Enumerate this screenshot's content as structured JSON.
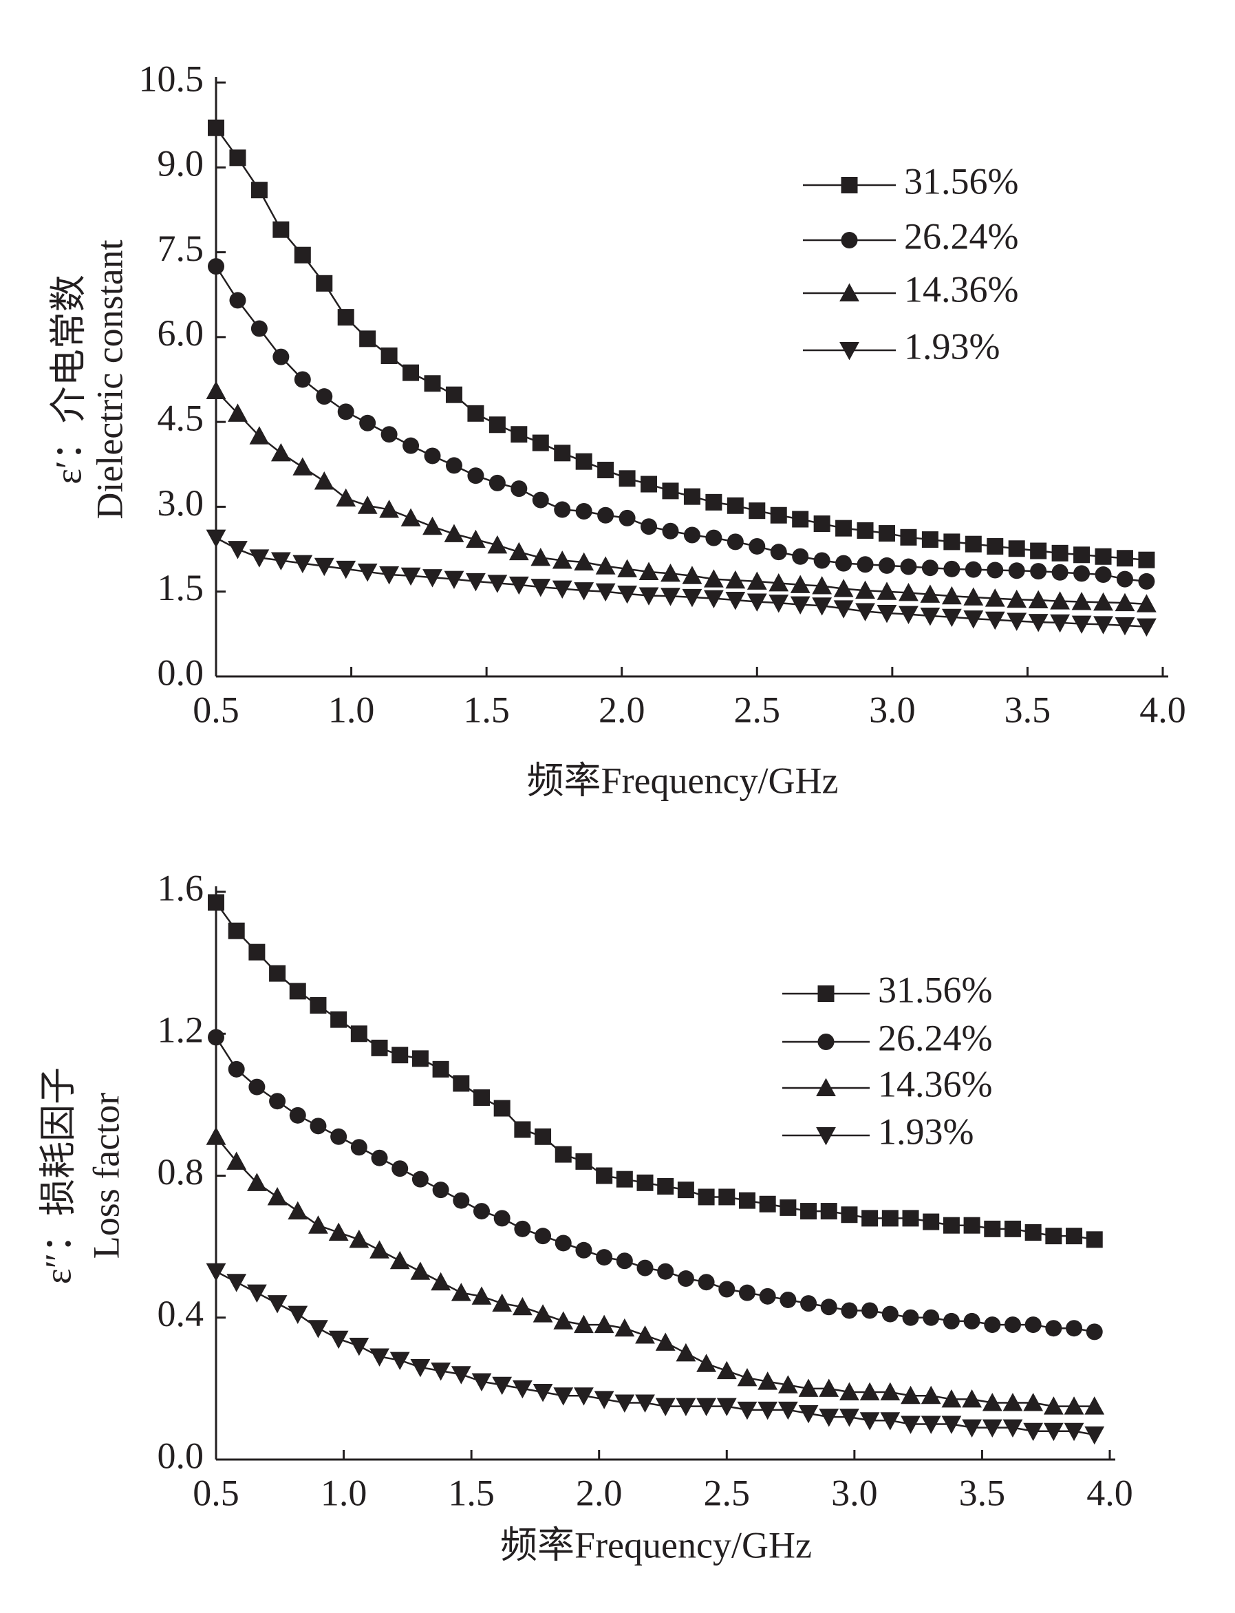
{
  "chart_data": [
    {
      "type": "line",
      "x_label": "频率Frequency/GHz",
      "y_label": [
        "ε′：介电常数",
        "Dielectric constant"
      ],
      "xlim": [
        0.5,
        4.0
      ],
      "xticks": [
        0.5,
        {
          "value": 1.0,
          "label": "1.0"
        },
        1.5,
        {
          "value": 2.0,
          "label": "2.0"
        },
        2.5,
        {
          "value": 3.0,
          "label": "3.0"
        },
        3.5,
        {
          "value": 4.0,
          "label": "4.0"
        }
      ],
      "ylim": [
        0,
        10.5
      ],
      "yticks": [
        {
          "value": 0,
          "label": "0.0"
        },
        1.5,
        {
          "value": 3.0,
          "label": "3.0"
        },
        4.5,
        {
          "value": 6.0,
          "label": "6.0"
        },
        7.5,
        {
          "value": 9.0,
          "label": "9.0"
        },
        10.5
      ],
      "x": [
        0.5,
        0.58,
        0.66,
        0.74,
        0.82,
        0.9,
        0.98,
        1.06,
        1.14,
        1.22,
        1.3,
        1.38,
        1.46,
        1.54,
        1.62,
        1.7,
        1.78,
        1.86,
        1.94,
        2.02,
        2.1,
        2.18,
        2.26,
        2.34,
        2.42,
        2.5,
        2.58,
        2.66,
        2.74,
        2.82,
        2.9,
        2.98,
        3.06,
        3.14,
        3.22,
        3.3,
        3.38,
        3.46,
        3.54,
        3.62,
        3.7,
        3.78,
        3.86,
        3.94
      ],
      "series": [
        {
          "name": "31.56%",
          "marker": "square",
          "color": "#231f20",
          "values": [
            9.7,
            9.17,
            8.6,
            7.9,
            7.45,
            6.95,
            6.35,
            5.97,
            5.67,
            5.37,
            5.18,
            4.98,
            4.65,
            4.45,
            4.28,
            4.13,
            3.95,
            3.8,
            3.65,
            3.5,
            3.4,
            3.28,
            3.18,
            3.08,
            3.02,
            2.93,
            2.85,
            2.78,
            2.7,
            2.62,
            2.58,
            2.53,
            2.46,
            2.42,
            2.38,
            2.34,
            2.3,
            2.26,
            2.22,
            2.18,
            2.15,
            2.12,
            2.09,
            2.06
          ]
        },
        {
          "name": "26.24%",
          "marker": "circle",
          "color": "#231f20",
          "values": [
            7.25,
            6.65,
            6.15,
            5.65,
            5.25,
            4.95,
            4.68,
            4.48,
            4.28,
            4.08,
            3.9,
            3.73,
            3.55,
            3.42,
            3.32,
            3.12,
            2.95,
            2.92,
            2.85,
            2.8,
            2.65,
            2.57,
            2.5,
            2.45,
            2.38,
            2.3,
            2.2,
            2.12,
            2.05,
            2.0,
            1.98,
            1.96,
            1.94,
            1.92,
            1.9,
            1.89,
            1.88,
            1.87,
            1.86,
            1.84,
            1.82,
            1.8,
            1.72,
            1.68
          ]
        },
        {
          "name": "14.36%",
          "marker": "triangle-up",
          "color": "#231f20",
          "values": [
            5.05,
            4.65,
            4.25,
            3.95,
            3.7,
            3.45,
            3.15,
            3.02,
            2.95,
            2.8,
            2.65,
            2.52,
            2.42,
            2.32,
            2.2,
            2.1,
            2.05,
            2.02,
            1.95,
            1.9,
            1.85,
            1.82,
            1.78,
            1.72,
            1.7,
            1.68,
            1.65,
            1.62,
            1.6,
            1.55,
            1.52,
            1.5,
            1.48,
            1.45,
            1.42,
            1.4,
            1.38,
            1.36,
            1.35,
            1.33,
            1.32,
            1.31,
            1.3,
            1.28
          ]
        },
        {
          "name": "1.93%",
          "marker": "triangle-down",
          "color": "#231f20",
          "values": [
            2.45,
            2.25,
            2.1,
            2.05,
            2.0,
            1.95,
            1.9,
            1.85,
            1.8,
            1.78,
            1.75,
            1.72,
            1.68,
            1.65,
            1.62,
            1.58,
            1.55,
            1.52,
            1.5,
            1.46,
            1.43,
            1.42,
            1.4,
            1.38,
            1.35,
            1.32,
            1.3,
            1.27,
            1.25,
            1.2,
            1.15,
            1.12,
            1.1,
            1.07,
            1.05,
            1.02,
            1.0,
            0.98,
            0.96,
            0.95,
            0.93,
            0.92,
            0.9,
            0.88
          ]
        }
      ]
    },
    {
      "type": "line",
      "x_label": "频率Frequency/GHz",
      "y_label": [
        "ε″：损耗因子",
        "Loss factor"
      ],
      "xlim": [
        0.5,
        4.0
      ],
      "xticks": [
        0.5,
        {
          "value": 1.0,
          "label": "1.0"
        },
        1.5,
        {
          "value": 2.0,
          "label": "2.0"
        },
        2.5,
        {
          "value": 3.0,
          "label": "3.0"
        },
        3.5,
        {
          "value": 4.0,
          "label": "4.0"
        }
      ],
      "ylim": [
        0,
        1.6
      ],
      "yticks": [
        {
          "value": 0,
          "label": "0.0"
        },
        0.4,
        0.8,
        1.2,
        1.6
      ],
      "x": [
        0.5,
        0.58,
        0.66,
        0.74,
        0.82,
        0.9,
        0.98,
        1.06,
        1.14,
        1.22,
        1.3,
        1.38,
        1.46,
        1.54,
        1.62,
        1.7,
        1.78,
        1.86,
        1.94,
        2.02,
        2.1,
        2.18,
        2.26,
        2.34,
        2.42,
        2.5,
        2.58,
        2.66,
        2.74,
        2.82,
        2.9,
        2.98,
        3.06,
        3.14,
        3.22,
        3.3,
        3.38,
        3.46,
        3.54,
        3.62,
        3.7,
        3.78,
        3.86,
        3.94
      ],
      "series": [
        {
          "name": "31.56%",
          "marker": "square",
          "color": "#231f20",
          "values": [
            1.57,
            1.49,
            1.43,
            1.37,
            1.32,
            1.28,
            1.24,
            1.2,
            1.16,
            1.14,
            1.13,
            1.1,
            1.06,
            1.02,
            0.99,
            0.93,
            0.91,
            0.86,
            0.84,
            0.8,
            0.79,
            0.78,
            0.77,
            0.76,
            0.74,
            0.74,
            0.73,
            0.72,
            0.71,
            0.7,
            0.7,
            0.69,
            0.68,
            0.68,
            0.68,
            0.67,
            0.66,
            0.66,
            0.65,
            0.65,
            0.64,
            0.63,
            0.63,
            0.62
          ]
        },
        {
          "name": "26.24%",
          "marker": "circle",
          "color": "#231f20",
          "values": [
            1.19,
            1.1,
            1.05,
            1.01,
            0.97,
            0.94,
            0.91,
            0.88,
            0.85,
            0.82,
            0.79,
            0.76,
            0.73,
            0.7,
            0.68,
            0.65,
            0.63,
            0.61,
            0.59,
            0.57,
            0.56,
            0.54,
            0.53,
            0.51,
            0.5,
            0.48,
            0.47,
            0.46,
            0.45,
            0.44,
            0.43,
            0.42,
            0.42,
            0.41,
            0.4,
            0.4,
            0.39,
            0.39,
            0.38,
            0.38,
            0.38,
            0.37,
            0.37,
            0.36
          ]
        },
        {
          "name": "14.36%",
          "marker": "triangle-up",
          "color": "#231f20",
          "values": [
            0.91,
            0.84,
            0.78,
            0.74,
            0.7,
            0.66,
            0.64,
            0.62,
            0.59,
            0.56,
            0.53,
            0.5,
            0.47,
            0.46,
            0.44,
            0.43,
            0.41,
            0.39,
            0.38,
            0.38,
            0.37,
            0.35,
            0.33,
            0.3,
            0.27,
            0.25,
            0.23,
            0.22,
            0.21,
            0.2,
            0.2,
            0.19,
            0.19,
            0.19,
            0.18,
            0.18,
            0.17,
            0.17,
            0.16,
            0.16,
            0.16,
            0.15,
            0.15,
            0.15
          ]
        },
        {
          "name": "1.93%",
          "marker": "triangle-down",
          "color": "#231f20",
          "values": [
            0.53,
            0.5,
            0.47,
            0.44,
            0.41,
            0.37,
            0.34,
            0.32,
            0.29,
            0.28,
            0.26,
            0.25,
            0.24,
            0.22,
            0.21,
            0.2,
            0.19,
            0.18,
            0.18,
            0.17,
            0.16,
            0.16,
            0.15,
            0.15,
            0.15,
            0.15,
            0.14,
            0.14,
            0.14,
            0.13,
            0.12,
            0.12,
            0.11,
            0.11,
            0.1,
            0.1,
            0.1,
            0.09,
            0.09,
            0.09,
            0.08,
            0.08,
            0.08,
            0.07
          ]
        }
      ]
    }
  ]
}
